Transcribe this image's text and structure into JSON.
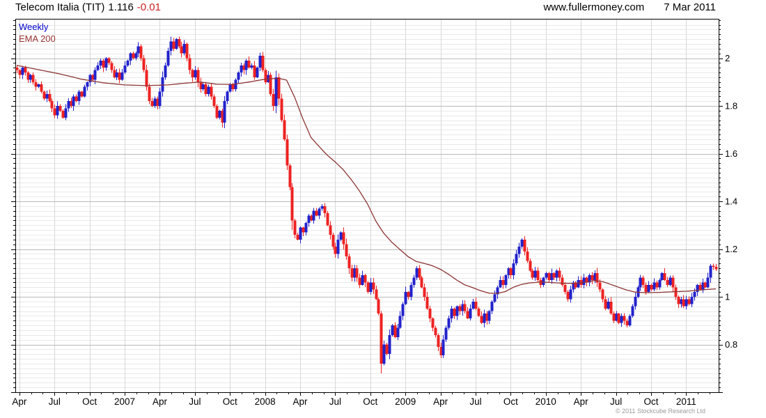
{
  "header": {
    "title": "Telecom Italia (TIT)",
    "price": "1.116",
    "change": "-0.01",
    "website": "www.fullermoney.com",
    "date": "7 Mar 2011"
  },
  "legend": {
    "weekly": "Weekly",
    "ema": "EMA 200"
  },
  "footer": {
    "copyright": "© 2011 Stockcube Research Ltd"
  },
  "colors": {
    "up": "#2222cc",
    "down": "#ee2222",
    "ema": "#8b3333",
    "legend_weekly": "#0000cc",
    "legend_ema": "#993333",
    "change": "#cc2222",
    "grid_minor": "#e9e9e9",
    "grid_major": "#b9b9b9",
    "grid_vert": "#d8d8d8",
    "axis": "#000000",
    "text": "#000000",
    "copyright": "#9a9a9a"
  },
  "chart_data": {
    "type": "candlestick",
    "title": "Telecom Italia (TIT)",
    "timeframe": "Weekly",
    "overlay": "EMA 200",
    "last_price": 1.116,
    "change": -0.01,
    "ylim": [
      0.6,
      2.165
    ],
    "y_ticks": [
      2,
      1.8,
      1.6,
      1.4,
      1.2,
      1,
      0.8
    ],
    "y_tick_labels": [
      "2",
      "1.8",
      "1.6",
      "1.4",
      "1.2",
      "1",
      "0.8"
    ],
    "y_minor_step": 0.02,
    "x_labels": [
      "Apr",
      "Jul",
      "Oct",
      "2007",
      "Apr",
      "Jul",
      "Oct",
      "2008",
      "Apr",
      "Jul",
      "Oct",
      "2009",
      "Apr",
      "Jul",
      "Oct",
      "2010",
      "Apr",
      "Jul",
      "Oct",
      "2011"
    ],
    "x_label_period": "quarterly, Apr 2006 - Mar 2011",
    "open_rule": "previous_close",
    "closes": [
      1.95,
      1.93,
      1.96,
      1.94,
      1.91,
      1.93,
      1.9,
      1.88,
      1.89,
      1.86,
      1.83,
      1.85,
      1.82,
      1.79,
      1.76,
      1.8,
      1.78,
      1.75,
      1.79,
      1.82,
      1.8,
      1.84,
      1.82,
      1.86,
      1.84,
      1.88,
      1.9,
      1.93,
      1.91,
      1.95,
      1.97,
      1.99,
      1.96,
      2.0,
      1.98,
      1.95,
      1.92,
      1.94,
      1.91,
      1.94,
      1.97,
      1.99,
      2.02,
      2.0,
      2.02,
      2.05,
      2.0,
      1.95,
      1.88,
      1.82,
      1.8,
      1.83,
      1.8,
      1.86,
      1.92,
      1.97,
      2.03,
      2.07,
      2.04,
      2.08,
      2.05,
      2.02,
      2.06,
      2.0,
      1.95,
      1.92,
      1.95,
      1.9,
      1.87,
      1.89,
      1.85,
      1.88,
      1.84,
      1.8,
      1.75,
      1.78,
      1.73,
      1.82,
      1.86,
      1.89,
      1.87,
      1.91,
      1.94,
      1.97,
      1.95,
      1.99,
      1.96,
      1.97,
      1.92,
      1.96,
      2.01,
      1.95,
      1.9,
      1.93,
      1.85,
      1.8,
      1.92,
      1.83,
      1.74,
      1.66,
      1.55,
      1.46,
      1.32,
      1.26,
      1.24,
      1.29,
      1.27,
      1.31,
      1.34,
      1.32,
      1.36,
      1.34,
      1.37,
      1.38,
      1.35,
      1.3,
      1.26,
      1.21,
      1.18,
      1.24,
      1.27,
      1.22,
      1.17,
      1.12,
      1.08,
      1.12,
      1.08,
      1.05,
      1.09,
      1.06,
      1.02,
      1.06,
      1.03,
      0.99,
      0.93,
      0.72,
      0.8,
      0.76,
      0.84,
      0.88,
      0.83,
      0.87,
      0.92,
      0.97,
      1.02,
      1.0,
      1.05,
      1.08,
      1.12,
      1.08,
      1.04,
      1.0,
      0.95,
      0.91,
      0.87,
      0.84,
      0.79,
      0.755,
      0.82,
      0.87,
      0.91,
      0.95,
      0.92,
      0.96,
      0.94,
      0.97,
      0.94,
      0.91,
      0.95,
      0.98,
      0.95,
      0.92,
      0.89,
      0.93,
      0.9,
      0.94,
      0.98,
      1.01,
      1.04,
      1.07,
      1.05,
      1.09,
      1.12,
      1.09,
      1.14,
      1.18,
      1.21,
      1.24,
      1.19,
      1.15,
      1.11,
      1.08,
      1.11,
      1.07,
      1.05,
      1.08,
      1.1,
      1.07,
      1.1,
      1.08,
      1.11,
      1.08,
      1.05,
      1.02,
      0.99,
      1.03,
      1.06,
      1.04,
      1.07,
      1.05,
      1.08,
      1.06,
      1.09,
      1.07,
      1.1,
      1.06,
      1.03,
      0.99,
      0.95,
      0.98,
      0.93,
      0.9,
      0.93,
      0.89,
      0.92,
      0.9,
      0.88,
      0.92,
      0.96,
      1.0,
      1.04,
      1.08,
      1.05,
      1.02,
      1.05,
      1.03,
      1.06,
      1.04,
      1.07,
      1.1,
      1.07,
      1.05,
      1.08,
      1.04,
      1.0,
      0.97,
      0.99,
      0.96,
      0.99,
      0.97,
      1.0,
      1.02,
      1.05,
      1.03,
      1.06,
      1.04,
      1.08,
      1.13,
      1.126,
      1.116
    ],
    "ema_label": "EMA 200",
    "ema_anchors": [
      [
        0,
        1.97
      ],
      [
        8,
        1.952
      ],
      [
        16,
        1.934
      ],
      [
        24,
        1.912
      ],
      [
        32,
        1.897
      ],
      [
        40,
        1.888
      ],
      [
        48,
        1.885
      ],
      [
        56,
        1.888
      ],
      [
        62,
        1.895
      ],
      [
        68,
        1.9
      ],
      [
        74,
        1.891
      ],
      [
        80,
        1.89
      ],
      [
        86,
        1.9
      ],
      [
        92,
        1.912
      ],
      [
        97,
        1.916
      ],
      [
        100,
        1.908
      ],
      [
        103,
        1.835
      ],
      [
        106,
        1.746
      ],
      [
        109,
        1.668
      ],
      [
        112,
        1.63
      ],
      [
        115,
        1.594
      ],
      [
        118,
        1.565
      ],
      [
        121,
        1.532
      ],
      [
        124,
        1.49
      ],
      [
        127,
        1.443
      ],
      [
        130,
        1.388
      ],
      [
        133,
        1.318
      ],
      [
        136,
        1.266
      ],
      [
        139,
        1.228
      ],
      [
        142,
        1.198
      ],
      [
        145,
        1.168
      ],
      [
        148,
        1.148
      ],
      [
        151,
        1.14
      ],
      [
        154,
        1.13
      ],
      [
        157,
        1.115
      ],
      [
        160,
        1.094
      ],
      [
        163,
        1.07
      ],
      [
        166,
        1.05
      ],
      [
        169,
        1.038
      ],
      [
        172,
        1.025
      ],
      [
        175,
        1.015
      ],
      [
        178,
        1.014
      ],
      [
        181,
        1.022
      ],
      [
        184,
        1.04
      ],
      [
        187,
        1.052
      ],
      [
        190,
        1.058
      ],
      [
        194,
        1.062
      ],
      [
        198,
        1.06
      ],
      [
        202,
        1.057
      ],
      [
        206,
        1.056
      ],
      [
        210,
        1.06
      ],
      [
        214,
        1.068
      ],
      [
        217,
        1.064
      ],
      [
        220,
        1.052
      ],
      [
        223,
        1.04
      ],
      [
        226,
        1.028
      ],
      [
        229,
        1.02
      ],
      [
        233,
        1.017
      ],
      [
        237,
        1.018
      ],
      [
        241,
        1.02
      ],
      [
        245,
        1.022
      ],
      [
        249,
        1.024
      ],
      [
        253,
        1.028
      ],
      [
        256,
        1.031
      ],
      [
        259,
        1.033
      ]
    ]
  }
}
